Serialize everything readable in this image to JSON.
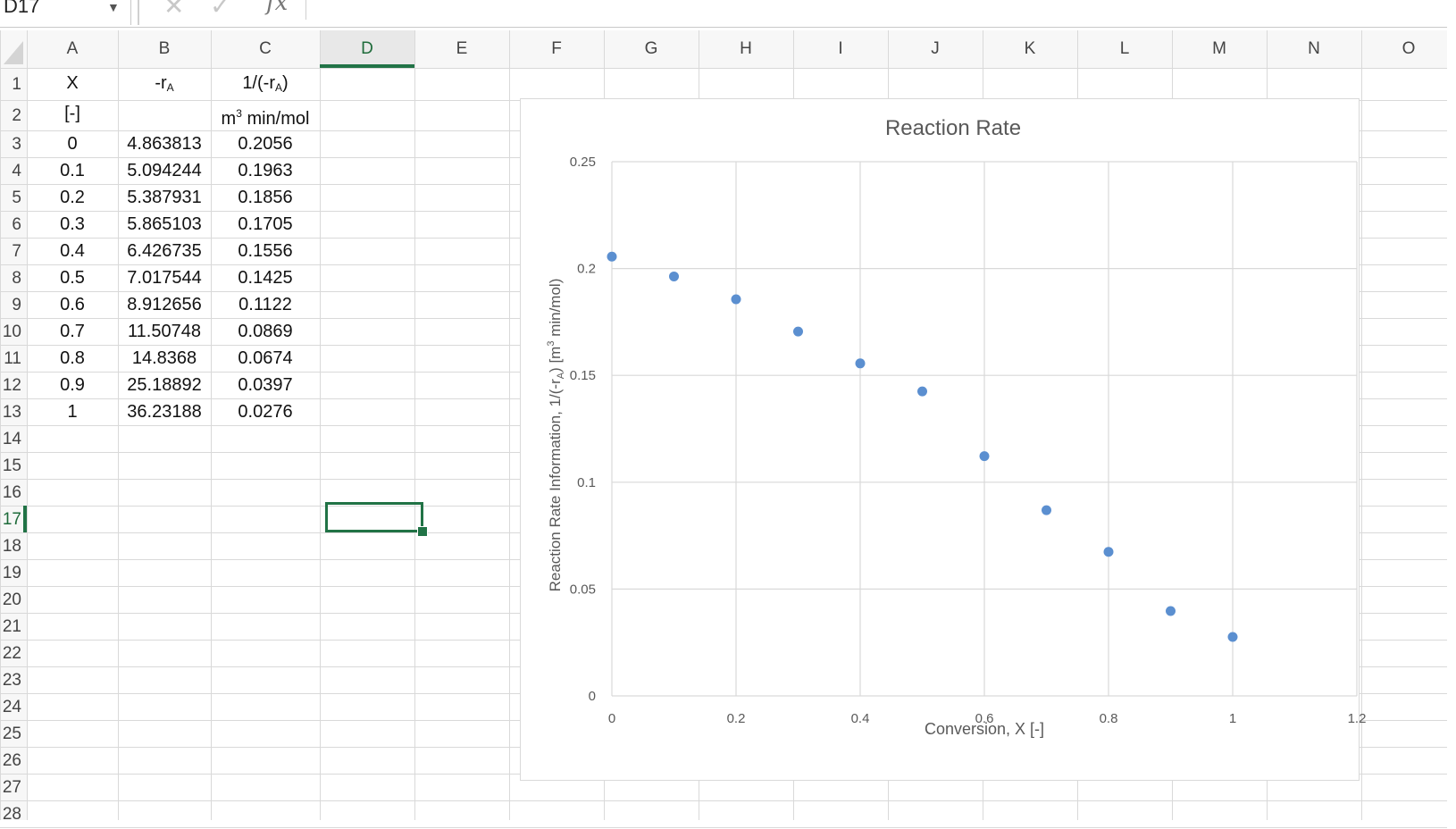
{
  "formula_bar": {
    "name_box": "D17",
    "cancel_icon": "cross-icon",
    "confirm_icon": "check-icon",
    "function_icon": "fx-icon",
    "formula_value": ""
  },
  "sheet": {
    "selected_cell": "D17",
    "columns": [
      "A",
      "B",
      "C",
      "D",
      "E",
      "F",
      "G",
      "H",
      "I",
      "J",
      "K",
      "L",
      "M",
      "N",
      "O"
    ],
    "active_column": "D",
    "row_numbers": [
      "1",
      "2",
      "3",
      "4",
      "5",
      "6",
      "7",
      "8",
      "9",
      "10",
      "11",
      "12",
      "13",
      "14",
      "15",
      "16",
      "17",
      "18",
      "19",
      "20",
      "21",
      "22",
      "23",
      "24",
      "25",
      "26",
      "27",
      "28"
    ],
    "active_row": "17",
    "headers": {
      "a1": "X",
      "b1_main": "-r",
      "b1_sub": "A",
      "c1_pre": "1/(-r",
      "c1_sub": "A",
      "c1_post": ")",
      "a2": "[-]",
      "c2_pre": "m",
      "c2_sup": "3",
      "c2_post": " min/mol"
    },
    "rows": [
      {
        "x": "0",
        "ra": "4.863813",
        "inv": "0.2056"
      },
      {
        "x": "0.1",
        "ra": "5.094244",
        "inv": "0.1963"
      },
      {
        "x": "0.2",
        "ra": "5.387931",
        "inv": "0.1856"
      },
      {
        "x": "0.3",
        "ra": "5.865103",
        "inv": "0.1705"
      },
      {
        "x": "0.4",
        "ra": "6.426735",
        "inv": "0.1556"
      },
      {
        "x": "0.5",
        "ra": "7.017544",
        "inv": "0.1425"
      },
      {
        "x": "0.6",
        "ra": "8.912656",
        "inv": "0.1122"
      },
      {
        "x": "0.7",
        "ra": "11.50748",
        "inv": "0.0869"
      },
      {
        "x": "0.8",
        "ra": "14.8368",
        "inv": "0.0674"
      },
      {
        "x": "0.9",
        "ra": "25.18892",
        "inv": "0.0397"
      },
      {
        "x": "1",
        "ra": "36.23188",
        "inv": "0.0276"
      }
    ]
  },
  "colors": {
    "accent": "#217346",
    "marker": "#5b8fd0",
    "gridline": "#d9d9d9"
  },
  "chart_data": {
    "type": "scatter",
    "title": "Reaction Rate",
    "xlabel": "Conversion, X [-]",
    "ylabel_pre": "Reaction Rate Information, 1/(-r",
    "ylabel_sub": "A",
    "ylabel_mid": ") [m",
    "ylabel_sup": "3",
    "ylabel_post": " min/mol)",
    "xlim": [
      0,
      1.2
    ],
    "ylim": [
      0,
      0.25
    ],
    "x_ticks": [
      "0",
      "0.2",
      "0.4",
      "0.6",
      "0.8",
      "1",
      "1.2"
    ],
    "y_ticks": [
      "0",
      "0.05",
      "0.1",
      "0.15",
      "0.2",
      "0.25"
    ],
    "grid": true,
    "x": [
      0,
      0.1,
      0.2,
      0.3,
      0.4,
      0.5,
      0.6,
      0.7,
      0.8,
      0.9,
      1
    ],
    "y": [
      0.2056,
      0.1963,
      0.1856,
      0.1705,
      0.1556,
      0.1425,
      0.1122,
      0.0869,
      0.0674,
      0.0397,
      0.0276
    ]
  }
}
